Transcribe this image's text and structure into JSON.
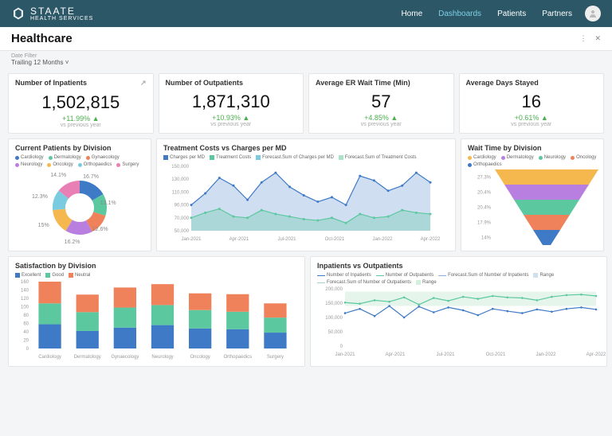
{
  "brand": {
    "name": "STAATE",
    "sub": "HEALTH SERVICES"
  },
  "nav": {
    "home": "Home",
    "dashboards": "Dashboards",
    "patients": "Patients",
    "partners": "Partners"
  },
  "page": {
    "title": "Healthcare",
    "filter_label": "Date Filter",
    "filter_value": "Trailing 12 Months ˅"
  },
  "kpi": [
    {
      "title": "Number of Inpatients",
      "value": "1,502,815",
      "delta": "+11.99% ▲",
      "sub": "vs previous year",
      "arrow": true
    },
    {
      "title": "Number of Outpatients",
      "value": "1,871,310",
      "delta": "+10.93% ▲",
      "sub": "vs previous year"
    },
    {
      "title": "Average ER Wait Time (Min)",
      "value": "57",
      "delta": "+4.85% ▲",
      "sub": "vs previous year"
    },
    {
      "title": "Average Days Stayed",
      "value": "16",
      "delta": "+0.61% ▲",
      "sub": "vs previous year"
    }
  ],
  "donut": {
    "title": "Current Patients by Division",
    "items": [
      {
        "label": "Cardiology",
        "color": "#3f7ac6",
        "pct": 16.7
      },
      {
        "label": "Dermatology",
        "color": "#5bc8a0",
        "pct": 13.1
      },
      {
        "label": "Gynaecology",
        "color": "#f0825b",
        "pct": 12.6
      },
      {
        "label": "Neurology",
        "color": "#b97fe0",
        "pct": 16.2
      },
      {
        "label": "Oncology",
        "color": "#f5b84f",
        "pct": 15.0
      },
      {
        "label": "Orthopaedics",
        "color": "#7bcbe0",
        "pct": 12.3
      },
      {
        "label": "Surgery",
        "color": "#e87fb5",
        "pct": 14.1
      }
    ]
  },
  "costs": {
    "title": "Treatment Costs vs Charges per MD",
    "legend": [
      {
        "label": "Charges per MD",
        "color": "#3f7ac6"
      },
      {
        "label": "Treatment Costs",
        "color": "#5bc8a0"
      },
      {
        "label": "Forecast.Sum of Charges per MD",
        "color": "#7bcbe0"
      },
      {
        "label": "Forecast.Sum of Treatment Costs",
        "color": "#a9e3c8"
      }
    ],
    "ylim": [
      50000,
      150000
    ],
    "yticks": [
      "50,000",
      "70,000",
      "90,000",
      "110,000",
      "130,000",
      "150,000"
    ],
    "xlabels": [
      "Jan-2021",
      "Apr-2021",
      "Jul-2021",
      "Oct-2021",
      "Jan-2022",
      "Apr-2022"
    ],
    "series": {
      "charges": [
        90000,
        108000,
        132000,
        120000,
        98000,
        125000,
        140000,
        118000,
        105000,
        95000,
        102000,
        90000,
        135000,
        128000,
        112000,
        120000,
        140000,
        125000
      ],
      "costs": [
        70000,
        78000,
        84000,
        72000,
        70000,
        82000,
        76000,
        72000,
        68000,
        66000,
        70000,
        62000,
        76000,
        70000,
        72000,
        82000,
        78000,
        76000
      ]
    }
  },
  "funnel": {
    "title": "Wait Time by Division",
    "legend": [
      {
        "label": "Cardiology",
        "color": "#f5b84f"
      },
      {
        "label": "Dermatology",
        "color": "#b97fe0"
      },
      {
        "label": "Neurology",
        "color": "#5bc8a0"
      },
      {
        "label": "Oncology",
        "color": "#f0825b"
      },
      {
        "label": "Orthopaedics",
        "color": "#3f7ac6"
      }
    ],
    "slices": [
      {
        "pct": "27.3%",
        "color": "#f5b84f"
      },
      {
        "pct": "20.4%",
        "color": "#b97fe0"
      },
      {
        "pct": "20.4%",
        "color": "#5bc8a0"
      },
      {
        "pct": "17.9%",
        "color": "#f0825b"
      },
      {
        "pct": "14%",
        "color": "#3f7ac6"
      }
    ]
  },
  "satisfaction": {
    "title": "Satisfaction by Division",
    "legend": [
      {
        "label": "Excellent",
        "color": "#3f7ac6"
      },
      {
        "label": "Good",
        "color": "#5bc8a0"
      },
      {
        "label": "Neutral",
        "color": "#f0825b"
      }
    ],
    "ylim": [
      0,
      160
    ],
    "yticks": [
      0,
      20,
      40,
      60,
      80,
      100,
      120,
      140,
      160
    ],
    "categories": [
      "Cardiology",
      "Dermatology",
      "Gynaecology",
      "Neurology",
      "Oncology",
      "Orthopaedics",
      "Surgery"
    ],
    "data": [
      {
        "ex": 58,
        "gd": 50,
        "nt": 52
      },
      {
        "ex": 42,
        "gd": 45,
        "nt": 42
      },
      {
        "ex": 50,
        "gd": 48,
        "nt": 48
      },
      {
        "ex": 56,
        "gd": 48,
        "nt": 50
      },
      {
        "ex": 48,
        "gd": 44,
        "nt": 40
      },
      {
        "ex": 46,
        "gd": 42,
        "nt": 42
      },
      {
        "ex": 38,
        "gd": 36,
        "nt": 34
      }
    ]
  },
  "inout": {
    "title": "Inpatients vs Outpatients",
    "legend": [
      {
        "label": "Number of Inpatients",
        "color": "#3f7ac6",
        "type": "line"
      },
      {
        "label": "Number of Outpatients",
        "color": "#5bc8a0",
        "type": "line"
      },
      {
        "label": "Forecast.Sum of Number of Inpatients",
        "color": "#8fb4dc",
        "type": "line"
      },
      {
        "label": "Range",
        "color": "#cfe0ef",
        "type": "sq"
      },
      {
        "label": "Forecast.Sum of Number of Outpatients",
        "color": "#9fd9be",
        "type": "line"
      },
      {
        "label": "Range",
        "color": "#d5efde",
        "type": "sq"
      }
    ],
    "ylim": [
      0,
      200000
    ],
    "yticks": [
      "0",
      "50,000",
      "100,000",
      "150,000",
      "200,000"
    ],
    "xlabels": [
      "Jan-2021",
      "Apr-2021",
      "Jul-2021",
      "Oct-2021",
      "Jan-2022",
      "Apr-2022"
    ],
    "inpatients": [
      115000,
      130000,
      105000,
      140000,
      100000,
      138000,
      118000,
      135000,
      125000,
      108000,
      130000,
      122000,
      115000,
      128000,
      120000,
      130000,
      135000,
      128000
    ],
    "outpatients": [
      152000,
      148000,
      160000,
      155000,
      170000,
      145000,
      168000,
      158000,
      172000,
      165000,
      175000,
      170000,
      168000,
      160000,
      172000,
      178000,
      180000,
      175000
    ]
  }
}
